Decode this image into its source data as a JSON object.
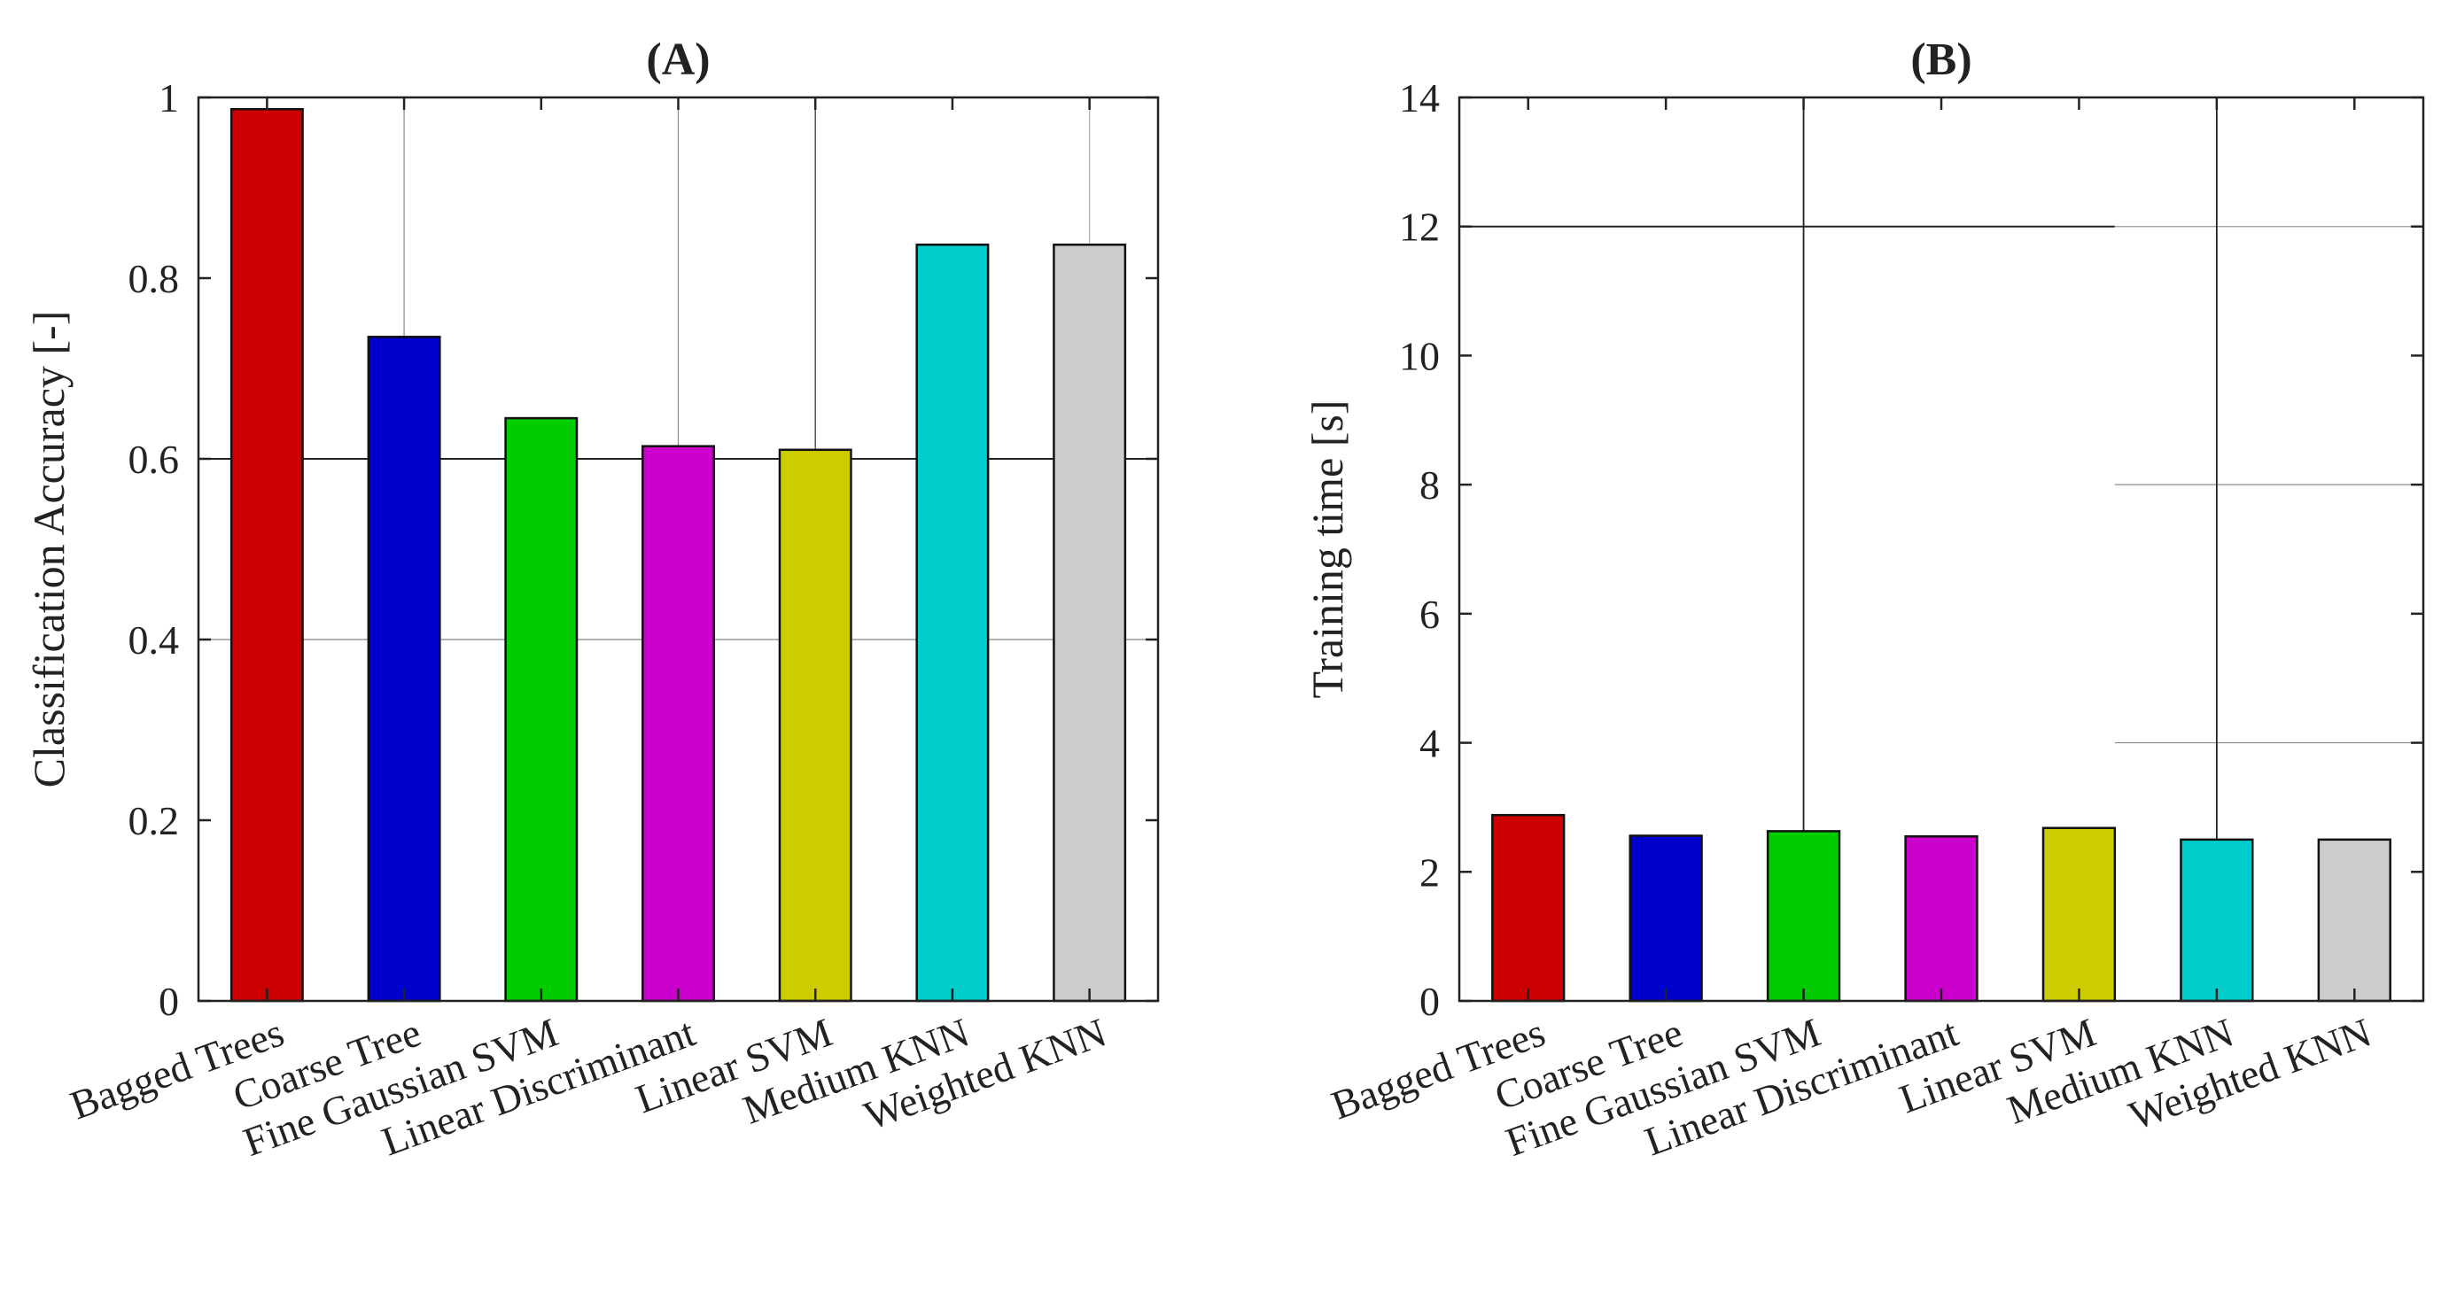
{
  "figure": {
    "panels": [
      "A",
      "B"
    ]
  },
  "chart_data": [
    {
      "type": "bar",
      "title": "(A)",
      "xlabel": "",
      "ylabel": "Classification Accuracy [-]",
      "categories": [
        "Bagged Trees",
        "Coarse Tree",
        "Fine Gaussian SVM",
        "Linear Discriminant",
        "Linear SVM",
        "Medium KNN",
        "Weighted KNN"
      ],
      "values": [
        0.987,
        0.735,
        0.645,
        0.614,
        0.61,
        0.837,
        0.837
      ],
      "colors": [
        "#cc0000",
        "#0000cc",
        "#00cc00",
        "#cc00cc",
        "#cccc00",
        "#00cccc",
        "#cccccc"
      ],
      "ylim": [
        0,
        1
      ],
      "yticks": [
        0,
        0.2,
        0.4,
        0.6,
        0.8,
        1
      ],
      "ytick_labels": [
        "0",
        "0.2",
        "0.4",
        "0.6",
        "0.8",
        "1"
      ],
      "grid": "partial"
    },
    {
      "type": "bar",
      "title": "(B)",
      "xlabel": "",
      "ylabel": "Training time [s]",
      "categories": [
        "Bagged Trees",
        "Coarse Tree",
        "Fine Gaussian SVM",
        "Linear Discriminant",
        "Linear SVM",
        "Medium KNN",
        "Weighted KNN"
      ],
      "values": [
        2.88,
        2.56,
        2.63,
        2.55,
        2.68,
        2.5,
        2.5
      ],
      "colors": [
        "#cc0000",
        "#0000cc",
        "#00cc00",
        "#cc00cc",
        "#cccc00",
        "#00cccc",
        "#cccccc"
      ],
      "ylim": [
        0,
        14
      ],
      "yticks": [
        0,
        2,
        4,
        6,
        8,
        10,
        12,
        14
      ],
      "ytick_labels": [
        "0",
        "2",
        "4",
        "6",
        "8",
        "10",
        "12",
        "14"
      ],
      "grid": "partial"
    }
  ]
}
